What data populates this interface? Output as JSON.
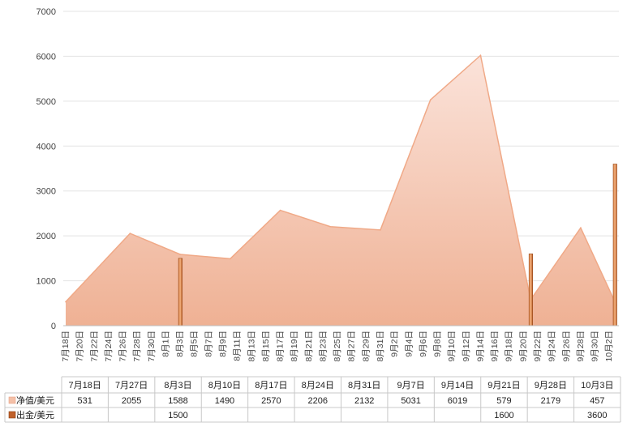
{
  "chart_data": {
    "type": "area",
    "ylim": [
      0,
      7000
    ],
    "yticks": [
      0,
      1000,
      2000,
      3000,
      4000,
      5000,
      6000,
      7000
    ],
    "grid": true,
    "x_tick_labels": [
      "7月18日",
      "7月20日",
      "7月22日",
      "7月24日",
      "7月26日",
      "7月28日",
      "7月30日",
      "8月1日",
      "8月3日",
      "8月5日",
      "8月7日",
      "8月9日",
      "8月11日",
      "8月13日",
      "8月15日",
      "8月17日",
      "8月19日",
      "8月21日",
      "8月23日",
      "8月25日",
      "8月27日",
      "8月29日",
      "8月31日",
      "9月2日",
      "9月4日",
      "9月6日",
      "9月8日",
      "9月10日",
      "9月12日",
      "9月14日",
      "9月16日",
      "9月18日",
      "9月20日",
      "9月22日",
      "9月24日",
      "9月26日",
      "9月28日",
      "9月30日",
      "10月2日"
    ],
    "table_categories": [
      "7月18日",
      "7月27日",
      "8月3日",
      "8月10日",
      "8月17日",
      "8月24日",
      "8月31日",
      "9月7日",
      "9月14日",
      "9月21日",
      "9月28日",
      "10月3日"
    ],
    "series": [
      {
        "name": "净值/美元",
        "kind": "area",
        "color": "#f2b8a0",
        "points": [
          {
            "x": "7月18日",
            "y": 531
          },
          {
            "x": "7月27日",
            "y": 2055
          },
          {
            "x": "8月3日",
            "y": 1588
          },
          {
            "x": "8月10日",
            "y": 1490
          },
          {
            "x": "8月17日",
            "y": 2570
          },
          {
            "x": "8月24日",
            "y": 2206
          },
          {
            "x": "8月31日",
            "y": 2132
          },
          {
            "x": "9月7日",
            "y": 5031
          },
          {
            "x": "9月14日",
            "y": 6019
          },
          {
            "x": "9月21日",
            "y": 579
          },
          {
            "x": "9月28日",
            "y": 2179
          },
          {
            "x": "10月3日",
            "y": 457
          }
        ],
        "table_values": [
          "531",
          "2055",
          "1588",
          "1490",
          "2570",
          "2206",
          "2132",
          "5031",
          "6019",
          "579",
          "2179",
          "457"
        ]
      },
      {
        "name": "出金/美元",
        "kind": "bar",
        "color": "#c0612b",
        "points": [
          {
            "x": "8月3日",
            "y": 1500
          },
          {
            "x": "9月21日",
            "y": 1600
          },
          {
            "x": "10月3日",
            "y": 3600
          }
        ],
        "table_values": [
          "",
          "",
          "1500",
          "",
          "",
          "",
          "",
          "",
          "",
          "1600",
          "",
          "3600"
        ]
      }
    ]
  }
}
